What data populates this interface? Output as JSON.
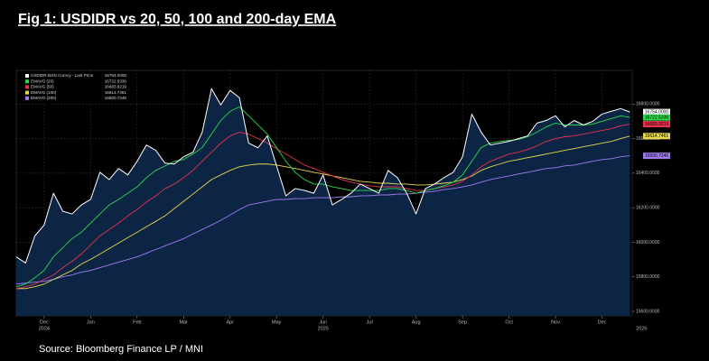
{
  "chart_data": {
    "type": "line",
    "title": "Fig 1:  USDIDR vs 20, 50, 100 and 200-day EMA",
    "source": "Source: Bloomberg Finance LP / MNI",
    "x": [
      -0.6,
      -0.4,
      -0.2,
      0,
      0.2,
      0.4,
      0.6,
      0.8,
      1,
      1.2,
      1.4,
      1.6,
      1.8,
      2,
      2.2,
      2.4,
      2.6,
      2.8,
      3,
      3.2,
      3.4,
      3.6,
      3.8,
      4,
      4.2,
      4.4,
      4.6,
      4.8,
      5,
      5.2,
      5.4,
      5.6,
      5.8,
      6,
      6.2,
      6.4,
      6.6,
      6.8,
      7,
      7.2,
      7.4,
      7.6,
      7.8,
      8,
      8.2,
      8.4,
      8.6,
      8.8,
      9,
      9.2,
      9.4,
      9.6,
      9.8,
      10,
      10.2,
      10.4,
      10.6,
      10.8,
      11,
      11.2,
      11.4,
      11.6,
      11.8,
      12,
      12.2,
      12.4,
      12.6
    ],
    "xlim": [
      -0.6,
      12.65
    ],
    "xticks": [
      {
        "value": 0,
        "label": "Dec"
      },
      {
        "value": 1,
        "label": "Jan"
      },
      {
        "value": 2,
        "label": "Feb"
      },
      {
        "value": 3,
        "label": "Mar"
      },
      {
        "value": 4,
        "label": "Apr"
      },
      {
        "value": 5,
        "label": "May"
      },
      {
        "value": 6,
        "label": "Jun"
      },
      {
        "value": 7,
        "label": "Jul"
      },
      {
        "value": 8,
        "label": "Aug"
      },
      {
        "value": 9,
        "label": "Sep"
      },
      {
        "value": 10,
        "label": "Oct"
      },
      {
        "value": 11,
        "label": "Nov"
      },
      {
        "value": 12,
        "label": "Dec"
      }
    ],
    "year_ticks": [
      {
        "value": 0,
        "label": "2024"
      },
      {
        "value": 6,
        "label": "2025"
      },
      {
        "value": 12.85,
        "label": "2026"
      }
    ],
    "ylim": [
      15574,
      16995
    ],
    "yticks": [
      {
        "value": 15600,
        "label": "15600.0000"
      },
      {
        "value": 15800,
        "label": "15800.0000"
      },
      {
        "value": 16000,
        "label": "16000.0000"
      },
      {
        "value": 16200,
        "label": "16200.0000"
      },
      {
        "value": 16400,
        "label": "16400.0000"
      },
      {
        "value": 16600,
        "label": "16600.0000"
      },
      {
        "value": 16800,
        "label": "16800.0000"
      }
    ],
    "grid": true,
    "area_color": "#0c2545",
    "series": [
      {
        "name": "USDIDR BGN Curncy - Last Price",
        "color": "#ffffff",
        "last_label": "16754.0000",
        "values": [
          15916,
          15880,
          16037,
          16100,
          16284,
          16180,
          16164,
          16216,
          16248,
          16405,
          16363,
          16427,
          16390,
          16469,
          16563,
          16532,
          16458,
          16453,
          16495,
          16521,
          16637,
          16889,
          16795,
          16879,
          16837,
          16574,
          16547,
          16616,
          16442,
          16269,
          16311,
          16300,
          16284,
          16390,
          16216,
          16248,
          16284,
          16337,
          16311,
          16284,
          16416,
          16374,
          16284,
          16164,
          16311,
          16337,
          16374,
          16405,
          16495,
          16742,
          16637,
          16563,
          16574,
          16584,
          16600,
          16616,
          16690,
          16705,
          16732,
          16668,
          16705,
          16679,
          16700,
          16742,
          16758,
          16774,
          16754
        ]
      },
      {
        "name": "EMAVG (20)",
        "color": "#2bd94a",
        "last_label": "16722.5336",
        "values": [
          15743,
          15758,
          15795,
          15837,
          15916,
          15969,
          16021,
          16058,
          16111,
          16164,
          16216,
          16248,
          16284,
          16321,
          16374,
          16416,
          16442,
          16469,
          16479,
          16511,
          16548,
          16626,
          16705,
          16758,
          16784,
          16732,
          16679,
          16626,
          16548,
          16469,
          16405,
          16363,
          16337,
          16337,
          16321,
          16311,
          16300,
          16300,
          16300,
          16300,
          16311,
          16311,
          16300,
          16284,
          16300,
          16311,
          16327,
          16348,
          16390,
          16469,
          16548,
          16574,
          16584,
          16590,
          16595,
          16611,
          16637,
          16668,
          16690,
          16679,
          16679,
          16679,
          16684,
          16700,
          16716,
          16732,
          16722.5336
        ]
      },
      {
        "name": "EMAVG (50)",
        "color": "#e8324e",
        "last_label": "16683.9219",
        "values": [
          15732,
          15743,
          15758,
          15785,
          15811,
          15853,
          15890,
          15932,
          15985,
          16037,
          16074,
          16111,
          16153,
          16190,
          16232,
          16269,
          16311,
          16337,
          16374,
          16416,
          16469,
          16521,
          16574,
          16616,
          16637,
          16626,
          16600,
          16574,
          16542,
          16511,
          16479,
          16447,
          16427,
          16405,
          16384,
          16363,
          16348,
          16337,
          16327,
          16321,
          16321,
          16321,
          16311,
          16300,
          16300,
          16311,
          16321,
          16332,
          16353,
          16390,
          16437,
          16469,
          16490,
          16511,
          16521,
          16537,
          16558,
          16584,
          16600,
          16611,
          16616,
          16626,
          16637,
          16647,
          16658,
          16674,
          16683.9219
        ]
      },
      {
        "name": "EMAVG (100)",
        "color": "#e6d84a",
        "last_label": "16614.7461",
        "values": [
          15732,
          15732,
          15743,
          15758,
          15785,
          15811,
          15837,
          15874,
          15901,
          15932,
          15964,
          15995,
          16027,
          16058,
          16090,
          16121,
          16153,
          16195,
          16237,
          16279,
          16321,
          16363,
          16390,
          16416,
          16437,
          16447,
          16453,
          16453,
          16447,
          16437,
          16427,
          16416,
          16405,
          16395,
          16384,
          16374,
          16363,
          16353,
          16348,
          16342,
          16342,
          16337,
          16337,
          16332,
          16332,
          16337,
          16342,
          16348,
          16363,
          16384,
          16416,
          16437,
          16453,
          16469,
          16479,
          16490,
          16500,
          16511,
          16521,
          16532,
          16542,
          16553,
          16563,
          16574,
          16584,
          16600,
          16614.7461
        ]
      },
      {
        "name": "EMAVG (200)",
        "color": "#a07cf0",
        "last_label": "16500.7246",
        "values": [
          15759,
          15764,
          15769,
          15774,
          15785,
          15801,
          15811,
          15827,
          15837,
          15853,
          15869,
          15885,
          15900,
          15916,
          15937,
          15958,
          15979,
          16000,
          16021,
          16048,
          16074,
          16100,
          16127,
          16158,
          16190,
          16216,
          16227,
          16237,
          16248,
          16248,
          16253,
          16253,
          16258,
          16258,
          16258,
          16263,
          16263,
          16269,
          16269,
          16274,
          16274,
          16279,
          16279,
          16284,
          16290,
          16295,
          16305,
          16311,
          16321,
          16332,
          16348,
          16363,
          16374,
          16384,
          16395,
          16405,
          16416,
          16427,
          16432,
          16442,
          16447,
          16458,
          16469,
          16479,
          16484,
          16495,
          16500.7246
        ]
      }
    ]
  }
}
